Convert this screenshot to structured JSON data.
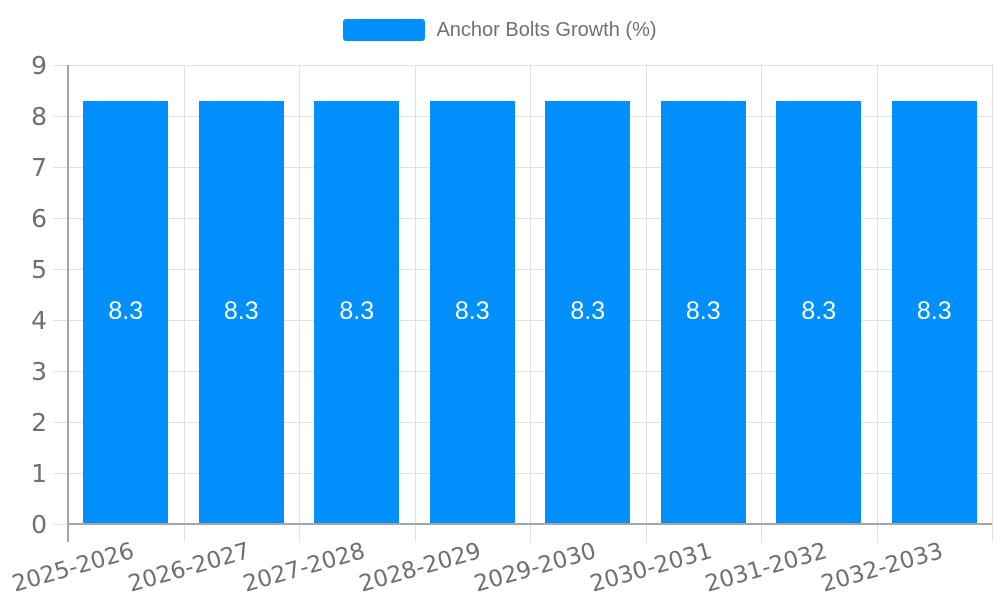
{
  "legend": {
    "label": "Anchor Bolts Growth (%)"
  },
  "colors": {
    "bar": "#008FFB",
    "grid": "#e1e1e1",
    "axis": "#a6a6a6",
    "tick_label": "#6e7073",
    "legend_label": "#6e7073",
    "value_label": "#ffffff",
    "background": "#ffffff"
  },
  "chart_data": {
    "type": "bar",
    "title": "",
    "xlabel": "",
    "ylabel": "",
    "categories": [
      "2025-2026",
      "2026-2027",
      "2027-2028",
      "2028-2029",
      "2029-2030",
      "2030-2031",
      "2031-2032",
      "2032-2033"
    ],
    "series": [
      {
        "name": "Anchor Bolts Growth (%)",
        "values": [
          8.3,
          8.3,
          8.3,
          8.3,
          8.3,
          8.3,
          8.3,
          8.3
        ],
        "value_labels": [
          "8.3",
          "8.3",
          "8.3",
          "8.3",
          "8.3",
          "8.3",
          "8.3",
          "8.3"
        ]
      }
    ],
    "ylim": [
      0,
      9
    ],
    "yticks": [
      0,
      1,
      2,
      3,
      4,
      5,
      6,
      7,
      8,
      9
    ],
    "grid": true,
    "legend_position": "top",
    "x_label_rotation_deg": -16
  }
}
